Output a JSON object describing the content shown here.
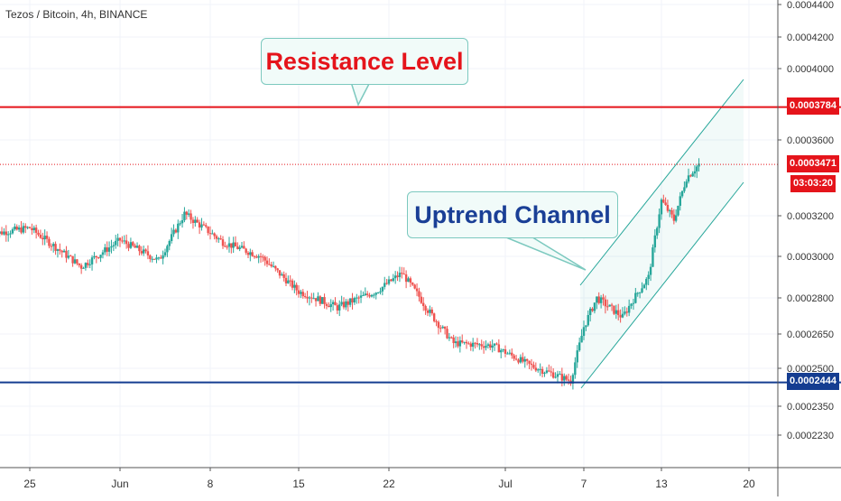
{
  "header": {
    "title": "Tezos / Bitcoin, 4h, BINANCE"
  },
  "annotations": {
    "resistance_label": "Resistance Level",
    "uptrend_label": "Uptrend Channel"
  },
  "price_tags": {
    "resistance": "0.0003784",
    "last": "0.0003471",
    "countdown": "03:03:20",
    "support": "0.0002444"
  },
  "colors": {
    "bull": "#26a69a",
    "bear": "#ef5350",
    "resistance_line": "#e5141b",
    "support_line": "#153d91",
    "channel": "#26a69a",
    "callout_border": "#7cc9bf",
    "callout_bg": "#f1fbf9"
  },
  "chart_data": {
    "type": "candlestick",
    "symbol": "Tezos / Bitcoin",
    "interval": "4h",
    "exchange": "BINANCE",
    "y_axis_ticks": [
      "0.0004400",
      "0.0004200",
      "0.0004000",
      "0.0003600",
      "0.0003200",
      "0.0003000",
      "0.0002800",
      "0.0002650",
      "0.0002500",
      "0.0002350",
      "0.0002230"
    ],
    "x_axis_ticks": [
      "25",
      "Jun",
      "8",
      "15",
      "22",
      "Jul",
      "7",
      "13",
      "20"
    ],
    "resistance_level": 0.0003784,
    "support_level": 0.0002444,
    "last_price": 0.0003471,
    "series_close_waypoints": [
      {
        "date": "2019-05-22",
        "close": 0.000311
      },
      {
        "date": "2019-05-25",
        "close": 0.000314
      },
      {
        "date": "2019-05-29",
        "close": 0.000295
      },
      {
        "date": "2019-06-01",
        "close": 0.000308
      },
      {
        "date": "2019-06-04",
        "close": 0.000298
      },
      {
        "date": "2019-06-06",
        "close": 0.000321
      },
      {
        "date": "2019-06-09",
        "close": 0.000307
      },
      {
        "date": "2019-06-12",
        "close": 0.0003
      },
      {
        "date": "2019-06-15",
        "close": 0.000283
      },
      {
        "date": "2019-06-18",
        "close": 0.000276
      },
      {
        "date": "2019-06-21",
        "close": 0.000283
      },
      {
        "date": "2019-06-23",
        "close": 0.000292
      },
      {
        "date": "2019-06-25",
        "close": 0.000275
      },
      {
        "date": "2019-06-27",
        "close": 0.000261
      },
      {
        "date": "2019-06-30",
        "close": 0.00026
      },
      {
        "date": "2019-07-03",
        "close": 0.000251
      },
      {
        "date": "2019-07-06",
        "close": 0.000245
      },
      {
        "date": "2019-07-07",
        "close": 0.000268
      },
      {
        "date": "2019-07-08",
        "close": 0.00028
      },
      {
        "date": "2019-07-10",
        "close": 0.000272
      },
      {
        "date": "2019-07-12",
        "close": 0.00029
      },
      {
        "date": "2019-07-13",
        "close": 0.000328
      },
      {
        "date": "2019-07-14",
        "close": 0.000318
      },
      {
        "date": "2019-07-15",
        "close": 0.00034
      },
      {
        "date": "2019-07-16",
        "close": 0.0003471
      }
    ]
  }
}
